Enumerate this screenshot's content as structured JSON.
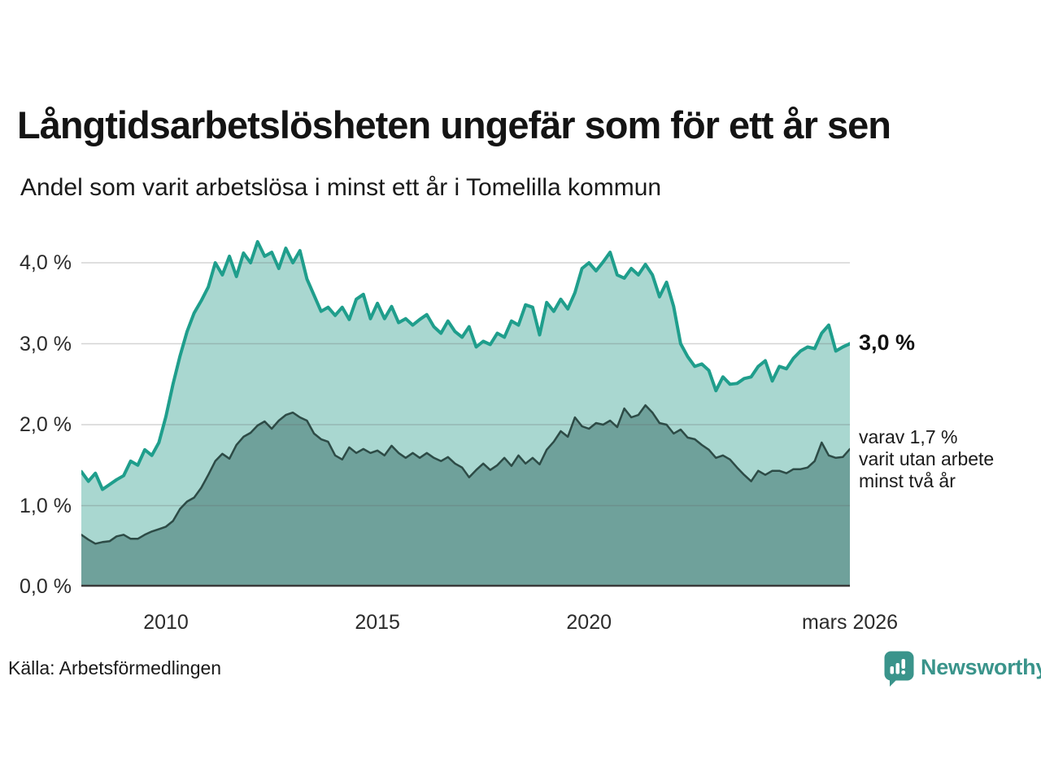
{
  "header": {
    "title": "Långtidsarbetslösheten ungefär som för ett år sen",
    "subtitle": "Andel som varit arbetslösa i minst ett år i Tomelilla kommun"
  },
  "footer": {
    "source": "Källa: Arbetsförmedlingen",
    "brand": "Newsworthy",
    "brand_color": "#3a948b"
  },
  "chart_data": {
    "type": "area",
    "title": "Långtidsarbetslösheten ungefär som för ett år sen",
    "subtitle": "Andel som varit arbetslösa i minst ett år i Tomelilla kommun",
    "grid": true,
    "legend_position": "none",
    "x_start": 2008.0,
    "x_end": 2026.1667,
    "ylim": [
      0,
      4.43
    ],
    "y_axis": {
      "ticks": [
        {
          "label": "4,0 %",
          "value": 4.0
        },
        {
          "label": "3,0 %",
          "value": 3.0
        },
        {
          "label": "2,0 %",
          "value": 2.0
        },
        {
          "label": "1,0 %",
          "value": 1.0
        },
        {
          "label": "0,0 %",
          "value": 0.0
        }
      ]
    },
    "x_axis": {
      "ticks": [
        {
          "label": "2010",
          "year": 2010
        },
        {
          "label": "2015",
          "year": 2015
        },
        {
          "label": "2020",
          "year": 2020
        },
        {
          "label": "mars 2026",
          "year": 2026.1667
        }
      ]
    },
    "series": [
      {
        "name": "arbetslösa minst ett år",
        "line_color": "#1f9e8c",
        "fill_color": "#a9d7d0",
        "line_width": 4,
        "values": [
          1.42,
          1.3,
          1.4,
          1.2,
          1.26,
          1.32,
          1.37,
          1.55,
          1.5,
          1.69,
          1.62,
          1.78,
          2.1,
          2.5,
          2.85,
          3.15,
          3.38,
          3.53,
          3.7,
          4.0,
          3.85,
          4.08,
          3.83,
          4.12,
          4.0,
          4.26,
          4.08,
          4.13,
          3.93,
          4.18,
          4.0,
          4.15,
          3.8,
          3.6,
          3.4,
          3.45,
          3.35,
          3.45,
          3.3,
          3.55,
          3.61,
          3.31,
          3.5,
          3.31,
          3.46,
          3.26,
          3.31,
          3.23,
          3.3,
          3.36,
          3.21,
          3.13,
          3.28,
          3.15,
          3.08,
          3.21,
          2.96,
          3.03,
          2.99,
          3.13,
          3.08,
          3.28,
          3.23,
          3.48,
          3.45,
          3.11,
          3.51,
          3.4,
          3.55,
          3.43,
          3.63,
          3.93,
          4.0,
          3.9,
          4.01,
          4.13,
          3.85,
          3.81,
          3.93,
          3.85,
          3.98,
          3.85,
          3.58,
          3.76,
          3.46,
          3.0,
          2.84,
          2.72,
          2.75,
          2.67,
          2.42,
          2.59,
          2.5,
          2.51,
          2.57,
          2.59,
          2.72,
          2.79,
          2.54,
          2.72,
          2.69,
          2.82,
          2.91,
          2.96,
          2.94,
          3.13,
          3.23,
          2.91,
          2.96,
          3.0
        ]
      },
      {
        "name": "varav arbetslösa minst två år",
        "line_color": "#2d4b46",
        "fill_color": "#6fa19b",
        "line_width": 2.5,
        "values": [
          0.64,
          0.58,
          0.53,
          0.55,
          0.56,
          0.62,
          0.64,
          0.59,
          0.59,
          0.64,
          0.68,
          0.71,
          0.74,
          0.81,
          0.96,
          1.05,
          1.1,
          1.22,
          1.38,
          1.55,
          1.64,
          1.58,
          1.75,
          1.85,
          1.9,
          1.99,
          2.04,
          1.95,
          2.05,
          2.12,
          2.15,
          2.09,
          2.05,
          1.89,
          1.82,
          1.79,
          1.62,
          1.57,
          1.72,
          1.65,
          1.7,
          1.65,
          1.68,
          1.62,
          1.74,
          1.65,
          1.59,
          1.65,
          1.59,
          1.65,
          1.59,
          1.55,
          1.6,
          1.52,
          1.47,
          1.35,
          1.44,
          1.52,
          1.44,
          1.5,
          1.59,
          1.49,
          1.62,
          1.52,
          1.59,
          1.51,
          1.69,
          1.79,
          1.92,
          1.85,
          2.09,
          1.98,
          1.95,
          2.02,
          2.0,
          2.05,
          1.97,
          2.2,
          2.09,
          2.12,
          2.24,
          2.15,
          2.02,
          2.0,
          1.89,
          1.94,
          1.84,
          1.82,
          1.75,
          1.69,
          1.59,
          1.62,
          1.57,
          1.47,
          1.38,
          1.3,
          1.43,
          1.38,
          1.43,
          1.43,
          1.4,
          1.45,
          1.45,
          1.47,
          1.55,
          1.78,
          1.62,
          1.59,
          1.6,
          1.7
        ]
      }
    ],
    "end_labels": {
      "primary_text": "3,0 %",
      "primary_value": 3.0,
      "secondary_line1": "varav 1,7 %",
      "secondary_line2": "varit utan arbete",
      "secondary_line3": "minst två år",
      "secondary_value": 1.7
    },
    "grid_color": "rgba(100,100,100,0.28)",
    "axis_color": "#3a3a3a"
  }
}
